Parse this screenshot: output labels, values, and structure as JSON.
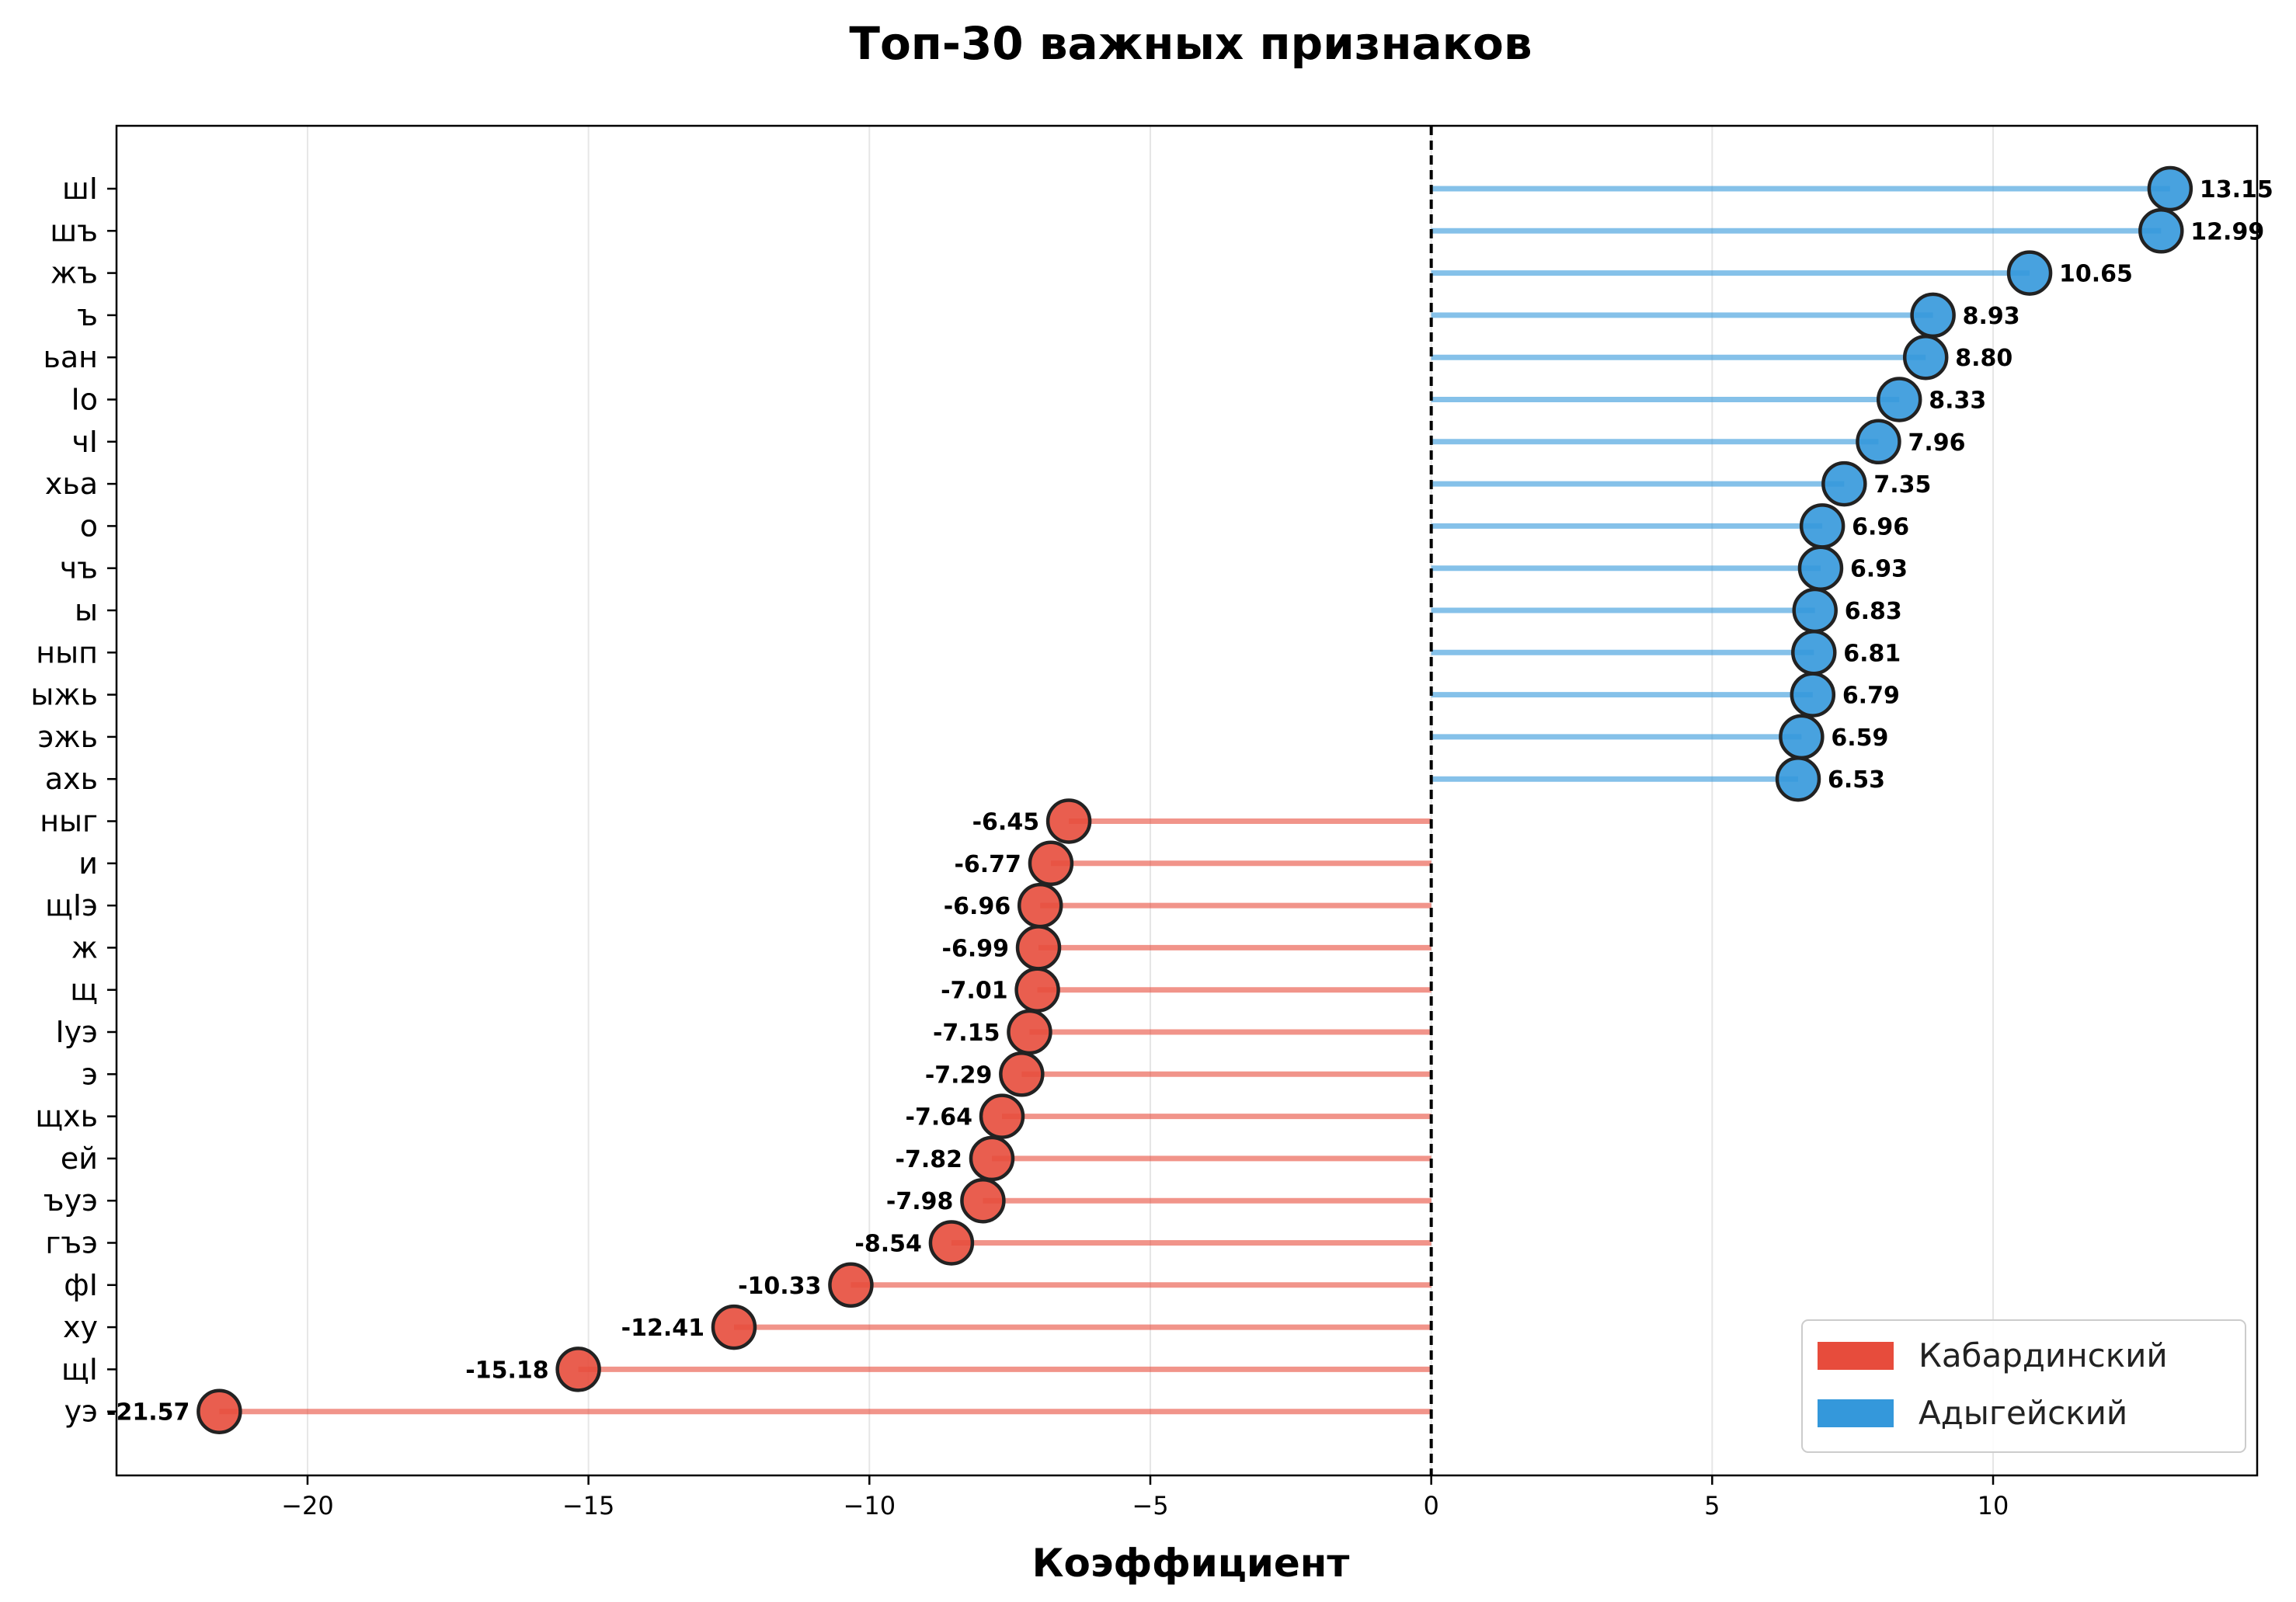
{
  "chart_data": {
    "type": "lollipop",
    "title": "Топ-30 важных признаков",
    "xlabel": "Коэффициент",
    "ylabel": "",
    "xlim": [
      -23.4,
      14.7
    ],
    "xticks": [
      -20,
      -15,
      -10,
      -5,
      0,
      5,
      10
    ],
    "xtick_labels": [
      "−20",
      "−15",
      "−10",
      "−5",
      "0",
      "5",
      "10"
    ],
    "grid": "vertical",
    "zero_line": "dashed",
    "legend": {
      "placement": "lower-right",
      "entries": [
        {
          "name": "Кабардинский",
          "color": "#e74c3c"
        },
        {
          "name": "Адыгейский",
          "color": "#3498db"
        }
      ]
    },
    "colors": {
      "negative": "#e74c3c",
      "positive": "#3498db"
    },
    "features": [
      {
        "label": "шI",
        "value": 13.15,
        "text": "13.15"
      },
      {
        "label": "шъ",
        "value": 12.99,
        "text": "12.99"
      },
      {
        "label": "жъ",
        "value": 10.65,
        "text": "10.65"
      },
      {
        "label": "ъ",
        "value": 8.93,
        "text": "8.93"
      },
      {
        "label": "ьан",
        "value": 8.8,
        "text": "8.80"
      },
      {
        "label": "Iо",
        "value": 8.33,
        "text": "8.33"
      },
      {
        "label": "чI",
        "value": 7.96,
        "text": "7.96"
      },
      {
        "label": "хьа",
        "value": 7.35,
        "text": "7.35"
      },
      {
        "label": "о",
        "value": 6.96,
        "text": "6.96"
      },
      {
        "label": "чъ",
        "value": 6.93,
        "text": "6.93"
      },
      {
        "label": "ы",
        "value": 6.83,
        "text": "6.83"
      },
      {
        "label": "нып",
        "value": 6.81,
        "text": "6.81"
      },
      {
        "label": "ыжь",
        "value": 6.79,
        "text": "6.79"
      },
      {
        "label": "эжь",
        "value": 6.59,
        "text": "6.59"
      },
      {
        "label": "ахь",
        "value": 6.53,
        "text": "6.53"
      },
      {
        "label": "ныг",
        "value": -6.45,
        "text": "-6.45"
      },
      {
        "label": "и",
        "value": -6.77,
        "text": "-6.77"
      },
      {
        "label": "щIэ",
        "value": -6.96,
        "text": "-6.96"
      },
      {
        "label": "ж",
        "value": -6.99,
        "text": "-6.99"
      },
      {
        "label": "щ",
        "value": -7.01,
        "text": "-7.01"
      },
      {
        "label": "Iуэ",
        "value": -7.15,
        "text": "-7.15"
      },
      {
        "label": "э",
        "value": -7.29,
        "text": "-7.29"
      },
      {
        "label": "щхь",
        "value": -7.64,
        "text": "-7.64"
      },
      {
        "label": "ей",
        "value": -7.82,
        "text": "-7.82"
      },
      {
        "label": "ъуэ",
        "value": -7.98,
        "text": "-7.98"
      },
      {
        "label": "гъэ",
        "value": -8.54,
        "text": "-8.54"
      },
      {
        "label": "фI",
        "value": -10.33,
        "text": "-10.33"
      },
      {
        "label": "ху",
        "value": -12.41,
        "text": "-12.41"
      },
      {
        "label": "щI",
        "value": -15.18,
        "text": "-15.18"
      },
      {
        "label": "уэ",
        "value": -21.57,
        "text": "-21.57"
      }
    ]
  }
}
